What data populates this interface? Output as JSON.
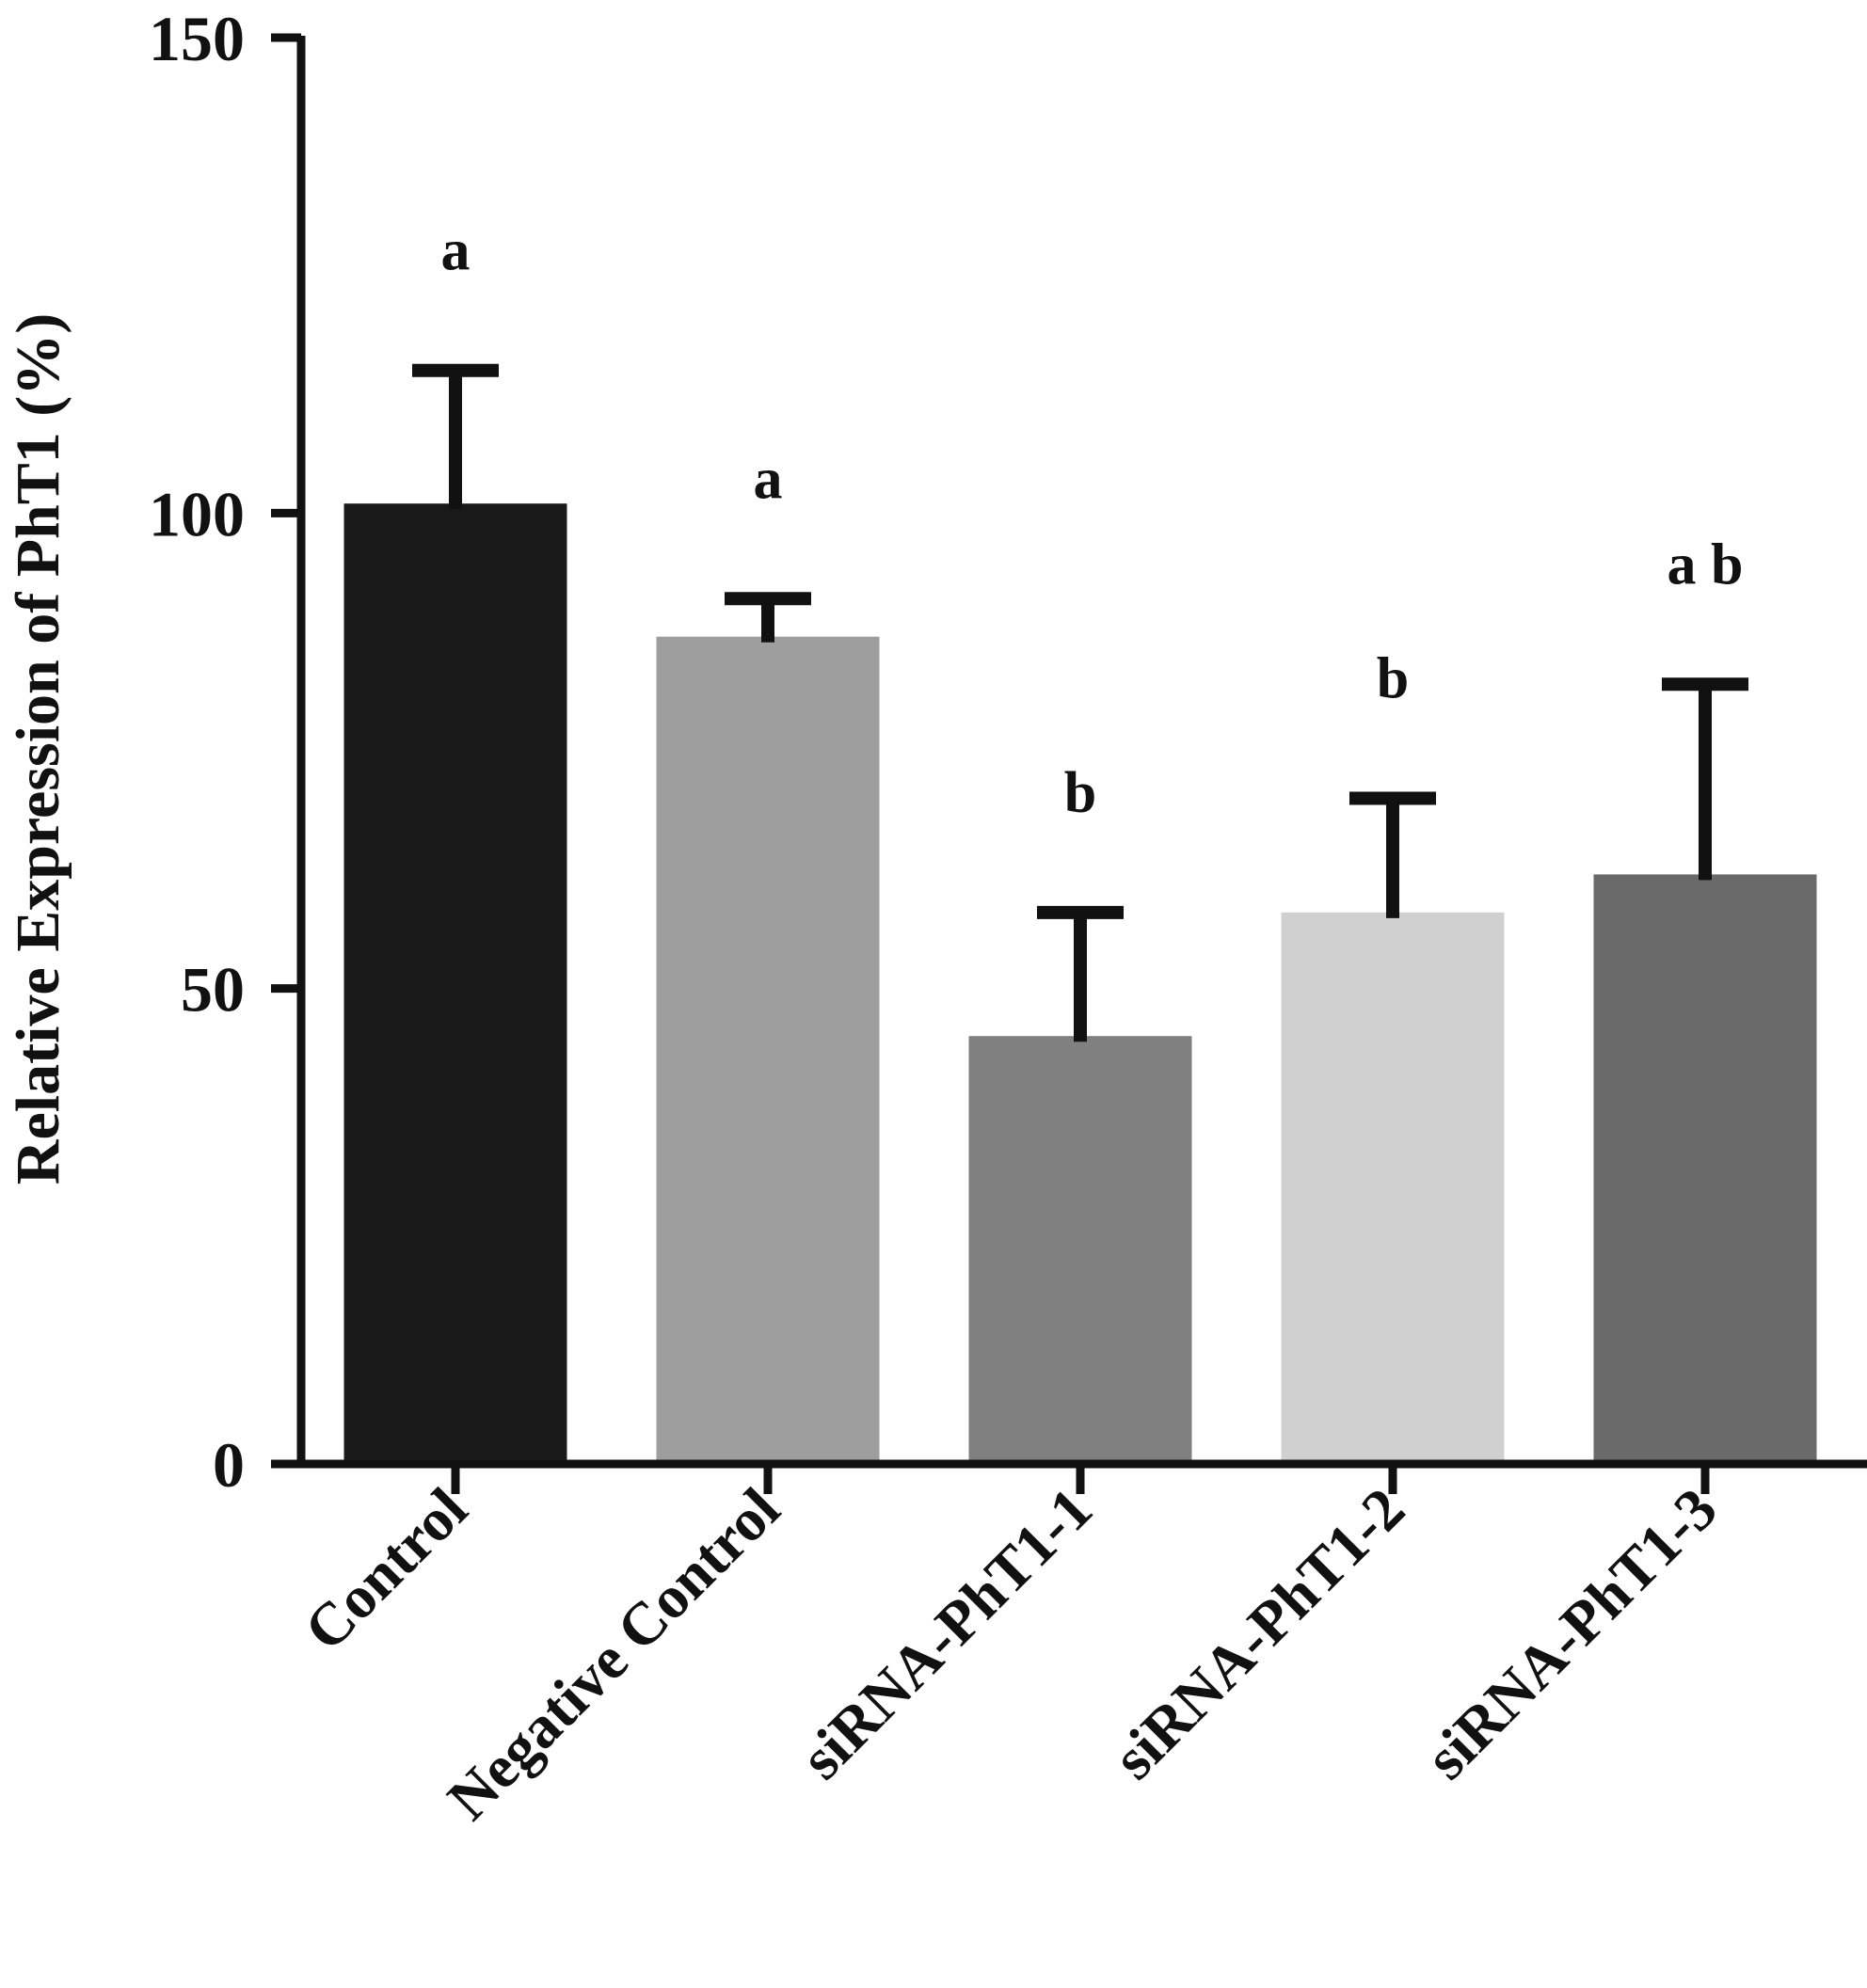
{
  "chart_data": {
    "type": "bar",
    "title": "",
    "xlabel": "",
    "ylabel": "Relative Expression of PhT1 (%)",
    "ylim": [
      0,
      150
    ],
    "yticks": [
      0,
      50,
      100,
      150
    ],
    "grid": false,
    "legend": "none",
    "categories": [
      "Control",
      "Negative Control",
      "siRNA-PhT1-1",
      "siRNA-PhT1-2",
      "siRNA-PhT1-3"
    ],
    "values": [
      101,
      87,
      45,
      58,
      62
    ],
    "errors": [
      14,
      4,
      13,
      12,
      20
    ],
    "significance_labels": [
      "a",
      "a",
      "b",
      "b",
      "a b"
    ],
    "bar_colors": [
      "#1a1a1a",
      "#9e9e9e",
      "#808080",
      "#d0d0d0",
      "#6a6a6a"
    ]
  }
}
